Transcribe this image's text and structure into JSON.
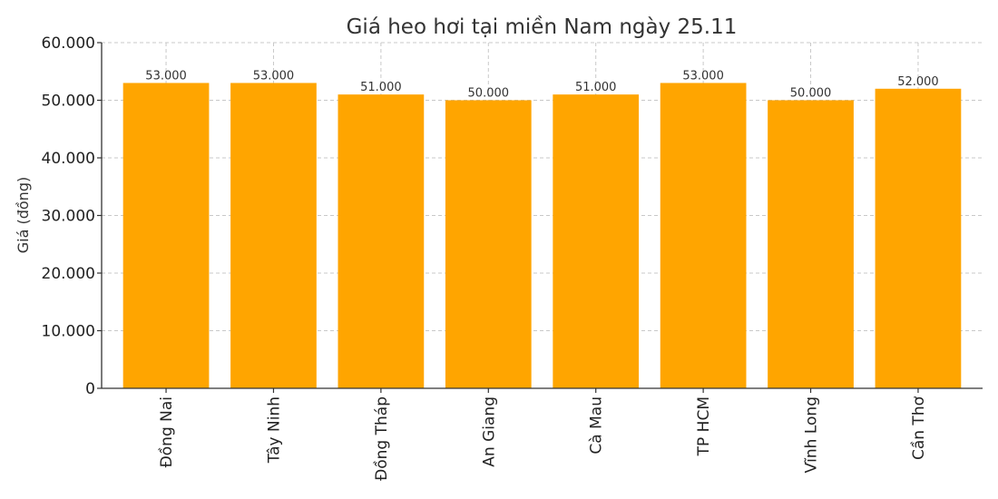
{
  "chart_data": {
    "type": "bar",
    "title": "Giá heo hơi tại miền Nam ngày 25.11",
    "xlabel": "",
    "ylabel": "Giá (đồng)",
    "categories": [
      "Đồng Nai",
      "Tây Ninh",
      "Đồng Tháp",
      "An Giang",
      "Cà Mau",
      "TP HCM",
      "Vĩnh Long",
      "Cần Thơ"
    ],
    "values": [
      53000,
      53000,
      51000,
      50000,
      51000,
      53000,
      50000,
      52000
    ],
    "value_labels": [
      "53.000",
      "53.000",
      "51.000",
      "50.000",
      "51.000",
      "53.000",
      "50.000",
      "52.000"
    ],
    "ylim": [
      0,
      60000
    ],
    "yticks": [
      0,
      10000,
      20000,
      30000,
      40000,
      50000,
      60000
    ],
    "ytick_labels": [
      "0",
      "10.000",
      "20.000",
      "30.000",
      "40.000",
      "50.000",
      "60.000"
    ],
    "grid": true,
    "bar_color": "#FFA500"
  }
}
